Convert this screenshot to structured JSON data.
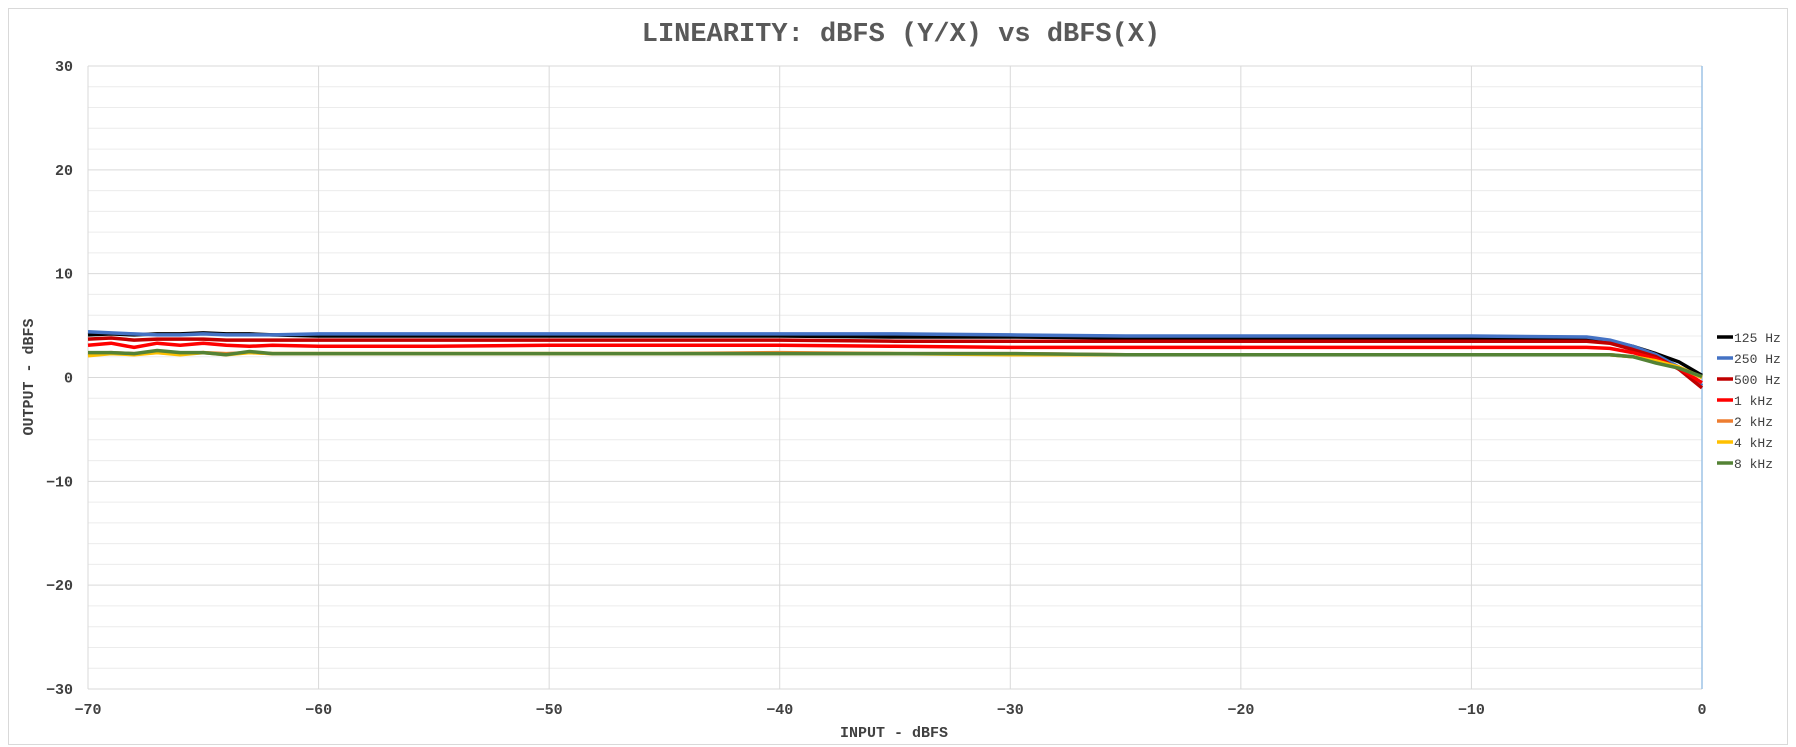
{
  "chart_data": {
    "type": "line",
    "title": "LINEARITY: dBFS (Y/X) vs dBFS(X)",
    "xlabel": "INPUT - dBFS",
    "ylabel": "OUTPUT - dBFS",
    "xlim": [
      -70,
      0
    ],
    "ylim": [
      -30,
      30
    ],
    "xticks": [
      -70,
      -60,
      -50,
      -40,
      -30,
      -20,
      -10,
      0
    ],
    "yticks": [
      -30,
      -20,
      -10,
      0,
      10,
      20,
      30
    ],
    "xtick_labels": [
      "−70",
      "−60",
      "−50",
      "−40",
      "−30",
      "−20",
      "−10",
      "0"
    ],
    "ytick_labels": [
      "−30",
      "−20",
      "−10",
      "0",
      "10",
      "20",
      "30"
    ],
    "grid": true,
    "legend_position": "right",
    "series": [
      {
        "name": "125 Hz",
        "color": "#000000",
        "x": [
          -70,
          -69,
          -68,
          -67,
          -66,
          -65,
          -64,
          -63,
          -62,
          -60,
          -55,
          -50,
          -45,
          -40,
          -35,
          -30,
          -25,
          -20,
          -15,
          -10,
          -5,
          -4,
          -3,
          -2,
          -1,
          0
        ],
        "y": [
          4.1,
          4.2,
          4.1,
          4.2,
          4.2,
          4.3,
          4.2,
          4.2,
          4.1,
          4.0,
          4.0,
          4.0,
          4.0,
          4.0,
          3.9,
          3.9,
          3.8,
          3.8,
          3.8,
          3.7,
          3.7,
          3.5,
          3.0,
          2.3,
          1.5,
          0.2
        ]
      },
      {
        "name": "250 Hz",
        "color": "#4472C4",
        "x": [
          -70,
          -69,
          -68,
          -67,
          -66,
          -65,
          -64,
          -63,
          -62,
          -60,
          -55,
          -50,
          -45,
          -40,
          -35,
          -30,
          -25,
          -20,
          -15,
          -10,
          -5,
          -4,
          -3,
          -2,
          -1,
          0
        ],
        "y": [
          4.4,
          4.3,
          4.2,
          4.1,
          4.1,
          4.2,
          4.1,
          4.1,
          4.1,
          4.2,
          4.2,
          4.2,
          4.2,
          4.2,
          4.2,
          4.1,
          4.0,
          4.0,
          4.0,
          4.0,
          3.9,
          3.6,
          3.0,
          2.2,
          1.0,
          -0.8
        ]
      },
      {
        "name": "500 Hz",
        "color": "#C00000",
        "x": [
          -70,
          -69,
          -68,
          -67,
          -66,
          -65,
          -64,
          -63,
          -62,
          -60,
          -55,
          -50,
          -45,
          -40,
          -35,
          -30,
          -25,
          -20,
          -15,
          -10,
          -5,
          -4,
          -3,
          -2,
          -1,
          0
        ],
        "y": [
          3.7,
          3.8,
          3.6,
          3.7,
          3.7,
          3.7,
          3.6,
          3.6,
          3.6,
          3.6,
          3.6,
          3.6,
          3.6,
          3.6,
          3.5,
          3.5,
          3.5,
          3.5,
          3.5,
          3.5,
          3.5,
          3.3,
          2.7,
          2.0,
          0.8,
          -1.0
        ]
      },
      {
        "name": "1 kHz",
        "color": "#FF0000",
        "x": [
          -70,
          -69,
          -68,
          -67,
          -66,
          -65,
          -64,
          -63,
          -62,
          -60,
          -55,
          -50,
          -45,
          -40,
          -35,
          -30,
          -25,
          -20,
          -15,
          -10,
          -5,
          -4,
          -3,
          -2,
          -1,
          0
        ],
        "y": [
          3.1,
          3.3,
          2.9,
          3.3,
          3.1,
          3.3,
          3.1,
          3.0,
          3.1,
          3.0,
          3.0,
          3.1,
          3.1,
          3.1,
          3.0,
          2.9,
          2.9,
          2.9,
          2.9,
          2.9,
          2.9,
          2.8,
          2.4,
          1.8,
          0.9,
          -0.5
        ]
      },
      {
        "name": "2 kHz",
        "color": "#ED7D31",
        "x": [
          -70,
          -69,
          -68,
          -67,
          -66,
          -65,
          -64,
          -63,
          -62,
          -60,
          -55,
          -50,
          -45,
          -40,
          -35,
          -30,
          -25,
          -20,
          -15,
          -10,
          -5,
          -4,
          -3,
          -2,
          -1,
          0
        ],
        "y": [
          2.3,
          2.4,
          2.3,
          2.4,
          2.3,
          2.4,
          2.3,
          2.4,
          2.3,
          2.3,
          2.3,
          2.3,
          2.3,
          2.4,
          2.3,
          2.3,
          2.2,
          2.2,
          2.2,
          2.2,
          2.2,
          2.2,
          2.0,
          1.6,
          1.0,
          0.0
        ]
      },
      {
        "name": "4 kHz",
        "color": "#FFC000",
        "x": [
          -70,
          -69,
          -68,
          -67,
          -66,
          -65,
          -64,
          -63,
          -62,
          -60,
          -55,
          -50,
          -45,
          -40,
          -35,
          -30,
          -25,
          -20,
          -15,
          -10,
          -5,
          -4,
          -3,
          -2,
          -1,
          0
        ],
        "y": [
          2.1,
          2.3,
          2.2,
          2.4,
          2.2,
          2.4,
          2.2,
          2.4,
          2.3,
          2.3,
          2.3,
          2.3,
          2.3,
          2.3,
          2.3,
          2.2,
          2.2,
          2.2,
          2.2,
          2.2,
          2.2,
          2.2,
          2.0,
          1.6,
          1.0,
          0.0
        ]
      },
      {
        "name": "8 kHz",
        "color": "#548235",
        "x": [
          -70,
          -69,
          -68,
          -67,
          -66,
          -65,
          -64,
          -63,
          -62,
          -60,
          -55,
          -50,
          -45,
          -40,
          -35,
          -30,
          -25,
          -20,
          -15,
          -10,
          -5,
          -4,
          -3,
          -2,
          -1,
          0
        ],
        "y": [
          2.4,
          2.4,
          2.3,
          2.6,
          2.4,
          2.4,
          2.2,
          2.5,
          2.3,
          2.3,
          2.3,
          2.3,
          2.3,
          2.3,
          2.3,
          2.3,
          2.2,
          2.2,
          2.2,
          2.2,
          2.2,
          2.2,
          2.0,
          1.4,
          0.9,
          0.1
        ]
      }
    ]
  }
}
